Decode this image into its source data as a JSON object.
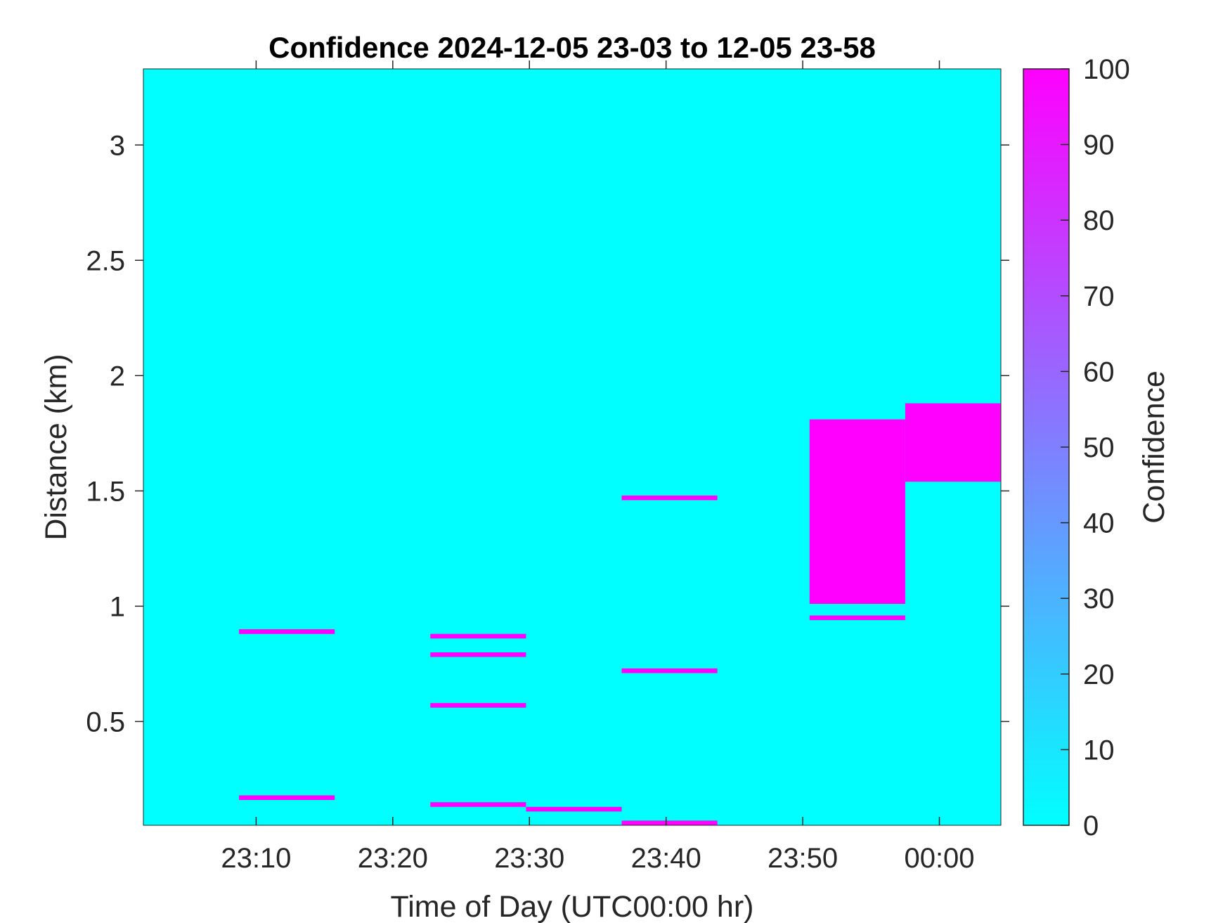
{
  "chart_data": {
    "type": "heatmap",
    "title": "Confidence 2024-12-05 23-03 to 12-05 23-58",
    "xlabel": "Time of Day (UTC00:00 hr)",
    "ylabel": "Distance (km)",
    "xlim": [
      "23:01:45",
      "00:04:30"
    ],
    "ylim": [
      0.05,
      3.33
    ],
    "xticks": [
      "23:10",
      "23:20",
      "23:30",
      "23:40",
      "23:50",
      "00:00"
    ],
    "yticks": [
      0.5,
      1,
      1.5,
      2,
      2.5,
      3
    ],
    "ytick_labels": [
      "0.5",
      "1",
      "1.5",
      "2",
      "2.5",
      "3"
    ],
    "background_value": 0,
    "colorbar": {
      "label": "Confidence",
      "range": [
        0,
        100
      ],
      "ticks": [
        0,
        10,
        20,
        30,
        40,
        50,
        60,
        70,
        80,
        90,
        100
      ],
      "color_low": "#00ffff",
      "color_high": "#ff00ff"
    },
    "cells": [
      {
        "t_start": "23:08:45",
        "t_end": "23:15:45",
        "d_min": 0.88,
        "d_max": 0.9,
        "value": 100
      },
      {
        "t_start": "23:08:45",
        "t_end": "23:15:45",
        "d_min": 0.16,
        "d_max": 0.18,
        "value": 100
      },
      {
        "t_start": "23:22:45",
        "t_end": "23:29:45",
        "d_min": 0.86,
        "d_max": 0.88,
        "value": 100
      },
      {
        "t_start": "23:22:45",
        "t_end": "23:29:45",
        "d_min": 0.78,
        "d_max": 0.8,
        "value": 100
      },
      {
        "t_start": "23:22:45",
        "t_end": "23:29:45",
        "d_min": 0.56,
        "d_max": 0.58,
        "value": 100
      },
      {
        "t_start": "23:22:45",
        "t_end": "23:29:45",
        "d_min": 0.13,
        "d_max": 0.15,
        "value": 100
      },
      {
        "t_start": "23:29:45",
        "t_end": "23:36:45",
        "d_min": 0.11,
        "d_max": 0.13,
        "value": 100
      },
      {
        "t_start": "23:36:45",
        "t_end": "23:43:45",
        "d_min": 1.46,
        "d_max": 1.48,
        "value": 100
      },
      {
        "t_start": "23:36:45",
        "t_end": "23:43:45",
        "d_min": 0.71,
        "d_max": 0.73,
        "value": 100
      },
      {
        "t_start": "23:36:45",
        "t_end": "23:43:45",
        "d_min": 0.05,
        "d_max": 0.07,
        "value": 100
      },
      {
        "t_start": "23:50:30",
        "t_end": "23:57:30",
        "d_min": 1.01,
        "d_max": 1.81,
        "value": 100
      },
      {
        "t_start": "23:50:30",
        "t_end": "23:57:30",
        "d_min": 0.94,
        "d_max": 0.96,
        "value": 100
      },
      {
        "t_start": "23:57:30",
        "t_end": "00:04:30",
        "d_min": 1.54,
        "d_max": 1.88,
        "value": 100
      }
    ]
  }
}
